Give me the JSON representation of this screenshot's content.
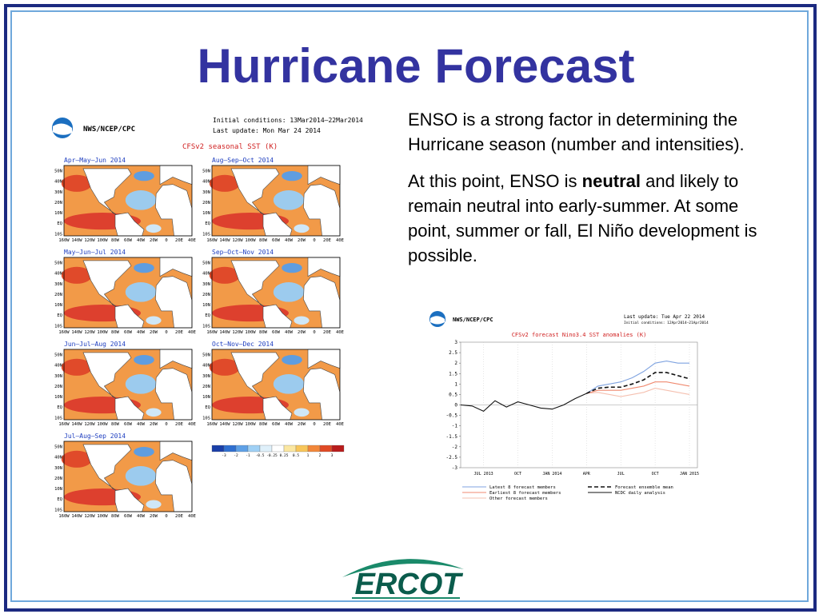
{
  "title": "Hurricane Forecast",
  "paragraphs": [
    {
      "text": "ENSO is a strong factor in determining the Hurricane season (number and intensities)."
    },
    {
      "before": "At this point, ENSO is ",
      "bold": "neutral",
      "after": " and likely to remain neutral into early-summer. At some point, summer or fall, El Niño development is possible."
    }
  ],
  "seasonal_figure": {
    "agency": "NWS/NCEP/CPC",
    "initial_conditions": "Initial conditions: 13Mar2014–22Mar2014",
    "last_update": "Last update: Mon Mar 24 2014",
    "title": "CFSv2 seasonal SST (K)",
    "panels": [
      "Apr–May–Jun 2014",
      "Aug–Sep–Oct 2014",
      "May–Jun–Jul 2014",
      "Sep–Oct–Nov 2014",
      "Jun–Jul–Aug 2014",
      "Oct–Nov–Dec 2014",
      "Jul–Aug–Sep 2014"
    ],
    "lat_labels": [
      "50N",
      "40N",
      "30N",
      "20N",
      "10N",
      "EQ",
      "10S"
    ],
    "lon_labels": [
      "160W",
      "140W",
      "120W",
      "100W",
      "80W",
      "60W",
      "40W",
      "20W",
      "0",
      "20E",
      "40E"
    ],
    "colorbar_labels": [
      "-3",
      "-2",
      "-1",
      "-0.5",
      "-0.25",
      "0.25",
      "0.5",
      "1",
      "2",
      "3"
    ]
  },
  "nino_header": {
    "agency": "NWS/NCEP/CPC",
    "last_update": "Last update: Tue Apr 22 2014",
    "initial_conditions": "Initial conditions: 12Apr2014–21Apr2014"
  },
  "chart_data": {
    "type": "line",
    "title": "CFSv2 forecast Nino3.4 SST anomalies (K)",
    "x": [
      "2013-05",
      "2013-06",
      "2013-07",
      "2013-08",
      "2013-09",
      "2013-10",
      "2013-11",
      "2013-12",
      "2014-01",
      "2014-02",
      "2014-03",
      "2014-04",
      "2014-05",
      "2014-06",
      "2014-07",
      "2014-08",
      "2014-09",
      "2014-10",
      "2014-11",
      "2014-12",
      "2015-01"
    ],
    "xticks": [
      {
        "value": "2013-07",
        "label": "JUL 2013"
      },
      {
        "value": "2013-10",
        "label": "OCT"
      },
      {
        "value": "2014-01",
        "label": "JAN 2014"
      },
      {
        "value": "2014-04",
        "label": "APR"
      },
      {
        "value": "2014-07",
        "label": "JUL"
      },
      {
        "value": "2014-10",
        "label": "OCT"
      },
      {
        "value": "2015-01",
        "label": "JAN 2015"
      }
    ],
    "ylim": [
      -3,
      3
    ],
    "yticks": [
      -3,
      -2.5,
      -2,
      -1.5,
      -1,
      -0.5,
      0,
      0.5,
      1,
      1.5,
      2,
      2.5,
      3
    ],
    "grid": true,
    "series": [
      {
        "name": "Latest 8 forecast members",
        "color": "#7fa3e0",
        "dash": false,
        "values": [
          null,
          null,
          null,
          null,
          null,
          null,
          null,
          null,
          null,
          null,
          null,
          0.55,
          0.9,
          1.0,
          1.1,
          1.3,
          1.6,
          2.0,
          2.1,
          2.0,
          2.0
        ]
      },
      {
        "name": "Earliest 8 forecast members",
        "color": "#f08a70",
        "dash": false,
        "values": [
          null,
          null,
          null,
          null,
          null,
          null,
          null,
          null,
          null,
          null,
          null,
          0.55,
          0.7,
          0.7,
          0.7,
          0.8,
          0.9,
          1.1,
          1.1,
          1.0,
          0.9
        ]
      },
      {
        "name": "Other forecast members",
        "color": "#f5c0b0",
        "dash": false,
        "values": [
          null,
          null,
          null,
          null,
          null,
          null,
          null,
          null,
          null,
          null,
          null,
          0.55,
          0.6,
          0.5,
          0.4,
          0.5,
          0.6,
          0.8,
          0.7,
          0.6,
          0.5
        ]
      },
      {
        "name": "Forecast ensemble mean",
        "color": "#111111",
        "dash": true,
        "values": [
          null,
          null,
          null,
          null,
          null,
          null,
          null,
          null,
          null,
          null,
          null,
          0.55,
          0.8,
          0.85,
          0.85,
          1.0,
          1.2,
          1.55,
          1.55,
          1.4,
          1.25
        ]
      },
      {
        "name": "NCDC daily analysis",
        "color": "#111111",
        "dash": false,
        "values": [
          0,
          -0.05,
          -0.3,
          0.2,
          -0.1,
          0.15,
          0,
          -0.15,
          -0.2,
          0,
          0.3,
          0.55,
          null,
          null,
          null,
          null,
          null,
          null,
          null,
          null,
          null
        ]
      }
    ]
  },
  "logo": "ERCOT"
}
